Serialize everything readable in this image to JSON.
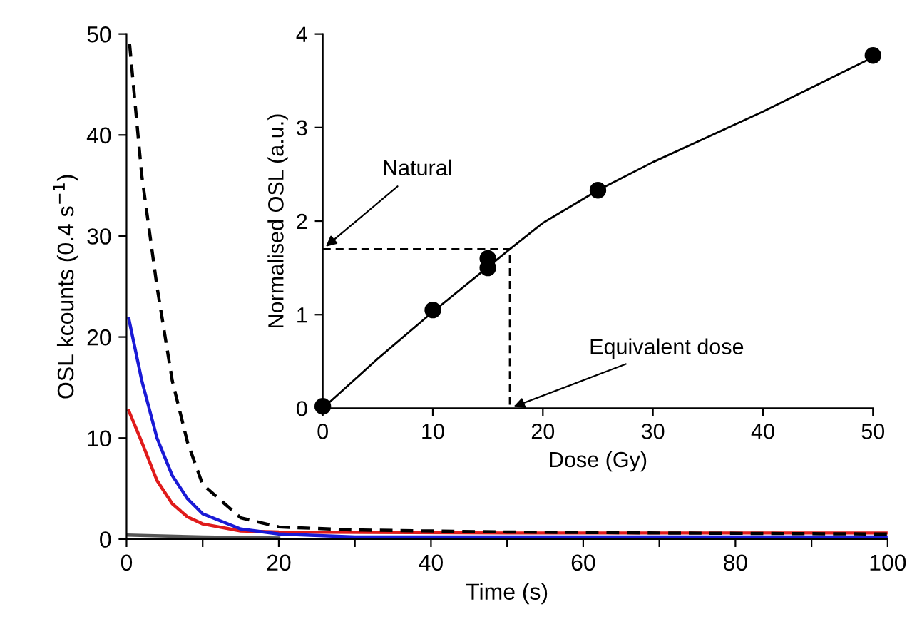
{
  "chart_data": [
    {
      "type": "line",
      "xlabel": "Time (s)",
      "ylabel": "OSL kcounts (0.4 s$^{−1}$)",
      "xlim": [
        0,
        100
      ],
      "ylim": [
        0,
        50
      ],
      "xticks": [
        0,
        {
          "value": 10,
          "label": null
        },
        20,
        {
          "value": 30,
          "label": null
        },
        40,
        {
          "value": 50,
          "label": null
        },
        60,
        {
          "value": 70,
          "label": null
        },
        80,
        {
          "value": 90,
          "label": null
        },
        100
      ],
      "yticks": [
        0,
        10,
        20,
        30,
        40,
        50
      ],
      "grid": false,
      "legend": false,
      "marker": "none",
      "series": [
        {
          "color": "#000000",
          "line_style": "dashed",
          "x": [
            0.4,
            2,
            4,
            6,
            8,
            10,
            15,
            20,
            30,
            50,
            70,
            100
          ],
          "values": [
            49,
            36,
            25,
            15.7,
            9.6,
            5.4,
            2.1,
            1.2,
            0.9,
            0.7,
            0.6,
            0.5
          ]
        },
        {
          "color": "#1a1ad6",
          "line_style": "solid",
          "x": [
            0.3,
            2,
            4,
            6,
            8,
            10,
            15,
            20,
            30,
            50,
            100
          ],
          "values": [
            21.8,
            15.7,
            10,
            6.3,
            4,
            2.5,
            1,
            0.5,
            0.2,
            0.2,
            0.2
          ]
        },
        {
          "color": "#e01b1b",
          "line_style": "solid",
          "x": [
            0.3,
            2,
            4,
            6,
            8,
            10,
            15,
            20,
            50,
            100
          ],
          "values": [
            12.7,
            9.6,
            5.8,
            3.5,
            2.2,
            1.5,
            0.8,
            0.7,
            0.6,
            0.6
          ]
        },
        {
          "color": "#555555",
          "line_style": "solid",
          "x": [
            0,
            10,
            20
          ],
          "values": [
            0.4,
            0.2,
            0.1
          ]
        }
      ]
    },
    {
      "type": "scatter",
      "xlabel": "Dose (Gy)",
      "ylabel": "Normalised OSL (a.u.)",
      "xlim": [
        0,
        50
      ],
      "ylim": [
        0,
        4
      ],
      "xticks": [
        0,
        10,
        20,
        30,
        40,
        50
      ],
      "yticks": [
        0,
        1,
        2,
        3,
        4
      ],
      "grid": false,
      "legend": false,
      "annotations": [
        {
          "text": "Natural",
          "x": 0,
          "y": 1.7
        },
        {
          "text": "Equivalent dose",
          "x": 17,
          "y": 0
        }
      ],
      "series": [
        {
          "type": "scatter",
          "marker": "circle",
          "color": "#000000",
          "x": [
            0,
            10,
            15,
            15,
            25,
            50
          ],
          "values": [
            0.02,
            1.05,
            1.5,
            1.6,
            2.33,
            3.77
          ]
        },
        {
          "type": "line",
          "color": "#000000",
          "line_style": "solid",
          "x": [
            0,
            5,
            10,
            17,
            20,
            25,
            30,
            35,
            40,
            45,
            50
          ],
          "values": [
            0,
            0.53,
            1.03,
            1.7,
            1.98,
            2.33,
            2.63,
            2.9,
            3.17,
            3.46,
            3.75
          ]
        },
        {
          "type": "line",
          "color": "#000000",
          "line_style": "dashed",
          "x": [
            0,
            17,
            17
          ],
          "values": [
            1.7,
            1.7,
            0
          ]
        }
      ]
    }
  ]
}
